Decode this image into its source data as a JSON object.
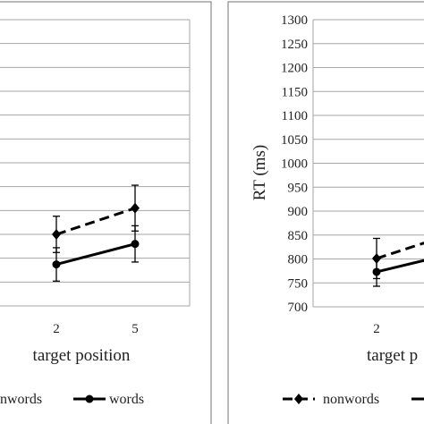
{
  "chart_data": [
    {
      "type": "line",
      "title": "",
      "xlabel": "target position",
      "ylabel": "",
      "categories": [
        "2",
        "5"
      ],
      "ylim": [
        700,
        1300
      ],
      "yticks": [],
      "grid": true,
      "legend_placement": "bottom",
      "series": [
        {
          "name": "nonwords",
          "style": "dashed",
          "marker": "diamond",
          "values": [
            850,
            905
          ],
          "errors": [
            38,
            48
          ]
        },
        {
          "name": "words",
          "style": "solid",
          "marker": "circle",
          "values": [
            787,
            830
          ],
          "errors": [
            35,
            38
          ]
        }
      ]
    },
    {
      "type": "line",
      "title": "",
      "xlabel": "target p",
      "ylabel": "RT (ms)",
      "categories": [
        "2"
      ],
      "ylim": [
        700,
        1300
      ],
      "yticks": [
        "700",
        "750",
        "800",
        "850",
        "900",
        "950",
        "1000",
        "1050",
        "1100",
        "1150",
        "1200",
        "1250",
        "1300"
      ],
      "grid": true,
      "legend_placement": "bottom",
      "series": [
        {
          "name": "nonwords",
          "style": "dashed",
          "marker": "diamond",
          "values": [
            801
          ],
          "errors": [
            42
          ],
          "continues_to": 862
        },
        {
          "name": "words",
          "style": "solid",
          "marker": "circle",
          "values": [
            773
          ],
          "errors": [
            30
          ],
          "continues_to": 818
        }
      ]
    }
  ],
  "legend": {
    "left": {
      "nonwords_label": "nwords",
      "words_label": "words"
    },
    "right": {
      "nonwords_label": "nonwords"
    }
  },
  "colors": {
    "line": "#000000",
    "grid": "#a6a6a6",
    "border": "#8a8a8a"
  }
}
